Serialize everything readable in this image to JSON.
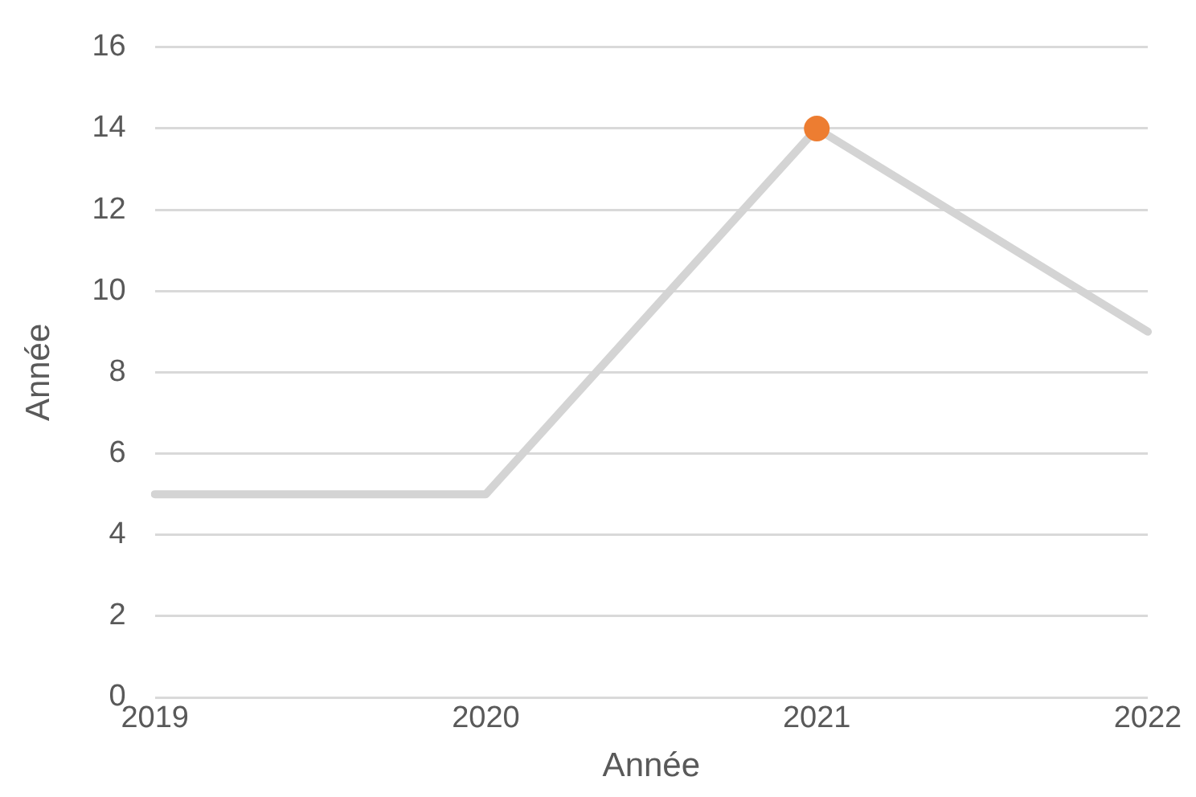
{
  "chart_data": {
    "type": "line",
    "xlabel": "Année",
    "ylabel": "Année",
    "categories": [
      "2019",
      "2020",
      "2021",
      "2022"
    ],
    "series": [
      {
        "type": "line",
        "color": "#d4d4d4",
        "values": [
          5,
          5,
          14,
          9
        ],
        "marker": "none"
      },
      {
        "type": "scatter",
        "color": "#ed7d31",
        "values": [
          null,
          null,
          14,
          null
        ],
        "marker": "circle"
      }
    ],
    "ylim": [
      0,
      16
    ],
    "yticks": [
      0,
      2,
      4,
      6,
      8,
      10,
      12,
      14,
      16
    ],
    "grid": "y",
    "legend": false
  }
}
